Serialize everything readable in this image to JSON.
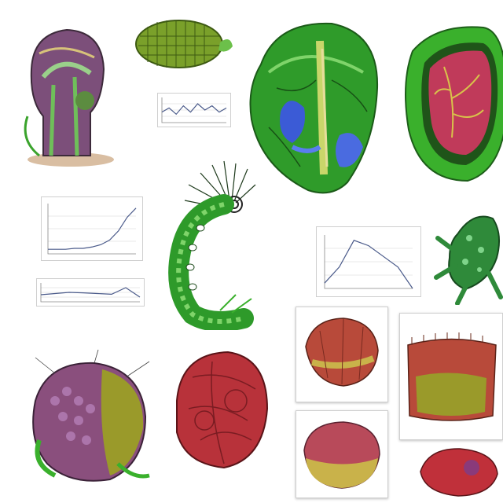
{
  "labels": {
    "top_left_title": "",
    "center_small_title": "",
    "left_chart_title": "",
    "right_chart_title": "",
    "right_mid_title": "",
    "bottom_center_caption": "",
    "bottom_center_caption2": ""
  },
  "chart_data": [
    {
      "type": "line",
      "title": "",
      "x": [
        0,
        1,
        2,
        3,
        4,
        5,
        6,
        7,
        8,
        9
      ],
      "values": [
        5,
        7,
        4,
        8,
        5,
        9,
        6,
        8,
        5,
        7
      ],
      "xlabel": "",
      "ylabel": "",
      "ylim": [
        0,
        12
      ]
    },
    {
      "type": "line",
      "title": "",
      "x": [
        0,
        1,
        2,
        3,
        4,
        5,
        6,
        7,
        8,
        9,
        10
      ],
      "values": [
        1,
        1,
        1,
        1.2,
        1.2,
        1.5,
        2,
        3,
        5,
        8,
        10
      ],
      "xlabel": "",
      "ylabel": "",
      "ylim": [
        0,
        11
      ]
    },
    {
      "type": "line",
      "title": "",
      "x": [
        0,
        1,
        2,
        3,
        4,
        5,
        6,
        7
      ],
      "values": [
        3,
        3.5,
        4,
        3.8,
        3.5,
        3.2,
        6,
        2
      ],
      "xlabel": "",
      "ylabel": "",
      "ylim": [
        0,
        8
      ]
    },
    {
      "type": "line",
      "title": "",
      "x": [
        0,
        1,
        2,
        3,
        4,
        5,
        6
      ],
      "values": [
        1,
        4,
        9,
        8,
        6,
        4,
        0
      ],
      "xlabel": "",
      "ylabel": "",
      "ylim": [
        0,
        10
      ]
    }
  ],
  "colors": {
    "leaf_green": "#3fae2a",
    "dark_green": "#1f6b1a",
    "tissue_red": "#b8323a",
    "purple": "#8a4f7d",
    "olive": "#9a9a2a",
    "blue": "#3b5bd6"
  }
}
